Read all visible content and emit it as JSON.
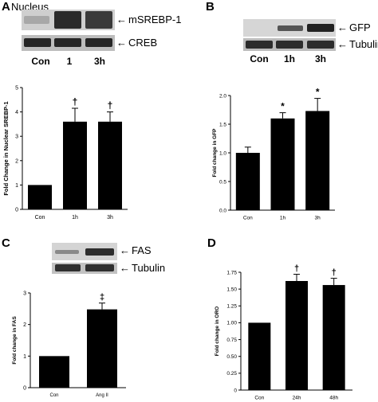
{
  "panels": {
    "A": {
      "letter": "A",
      "blot_title": "Nucleus",
      "band_labels": [
        "mSREBP-1",
        "CREB"
      ],
      "lane_labels": [
        "Con",
        "1",
        "3h"
      ]
    },
    "B": {
      "letter": "B",
      "band_labels": [
        "GFP",
        "Tubulin"
      ],
      "lane_labels": [
        "Con",
        "1h",
        "3h"
      ]
    },
    "C": {
      "letter": "C",
      "band_labels": [
        "FAS",
        "Tubulin"
      ]
    },
    "D": {
      "letter": "D"
    }
  },
  "arrow_glyph": "←",
  "chart_data": [
    {
      "type": "bar",
      "panel": "A",
      "categories": [
        "Con",
        "1h",
        "3h"
      ],
      "values": [
        1.0,
        3.6,
        3.6
      ],
      "errors": [
        0,
        0.55,
        0.4
      ],
      "markers": [
        "",
        "†",
        "†"
      ],
      "ylabel": "Fold Change in Nuclear SREBP-1",
      "ylim": [
        0,
        5
      ],
      "yticks": [
        "0",
        "1",
        "2",
        "3",
        "4",
        "5"
      ]
    },
    {
      "type": "bar",
      "panel": "B",
      "categories": [
        "Con",
        "1h",
        "3h"
      ],
      "values": [
        1.0,
        1.6,
        1.73
      ],
      "errors": [
        0.1,
        0.1,
        0.22
      ],
      "markers": [
        "",
        "*",
        "*"
      ],
      "ylabel": "Fold change in GFP",
      "ylim": [
        0,
        2.0
      ],
      "yticks": [
        "0.0",
        "0.5",
        "1.0",
        "1.5",
        "2.0"
      ]
    },
    {
      "type": "bar",
      "panel": "C",
      "categories": [
        "Con",
        "Ang II"
      ],
      "values": [
        1.0,
        2.48
      ],
      "errors": [
        0,
        0.2
      ],
      "markers": [
        "",
        "‡"
      ],
      "ylabel": "Fold change in FAS",
      "ylim": [
        0,
        3
      ],
      "yticks": [
        "0",
        "1",
        "2",
        "3"
      ]
    },
    {
      "type": "bar",
      "panel": "D",
      "categories": [
        "Con",
        "24h",
        "48h"
      ],
      "values": [
        1.0,
        1.62,
        1.56
      ],
      "errors": [
        0,
        0.1,
        0.1
      ],
      "markers": [
        "",
        "†",
        "†"
      ],
      "ylabel": "Fold change in ORO",
      "ylim": [
        0,
        1.75
      ],
      "yticks": [
        "0",
        "0.25",
        "0.50",
        "0.75",
        "1.00",
        "1.25",
        "1.50",
        "1.75"
      ]
    }
  ]
}
